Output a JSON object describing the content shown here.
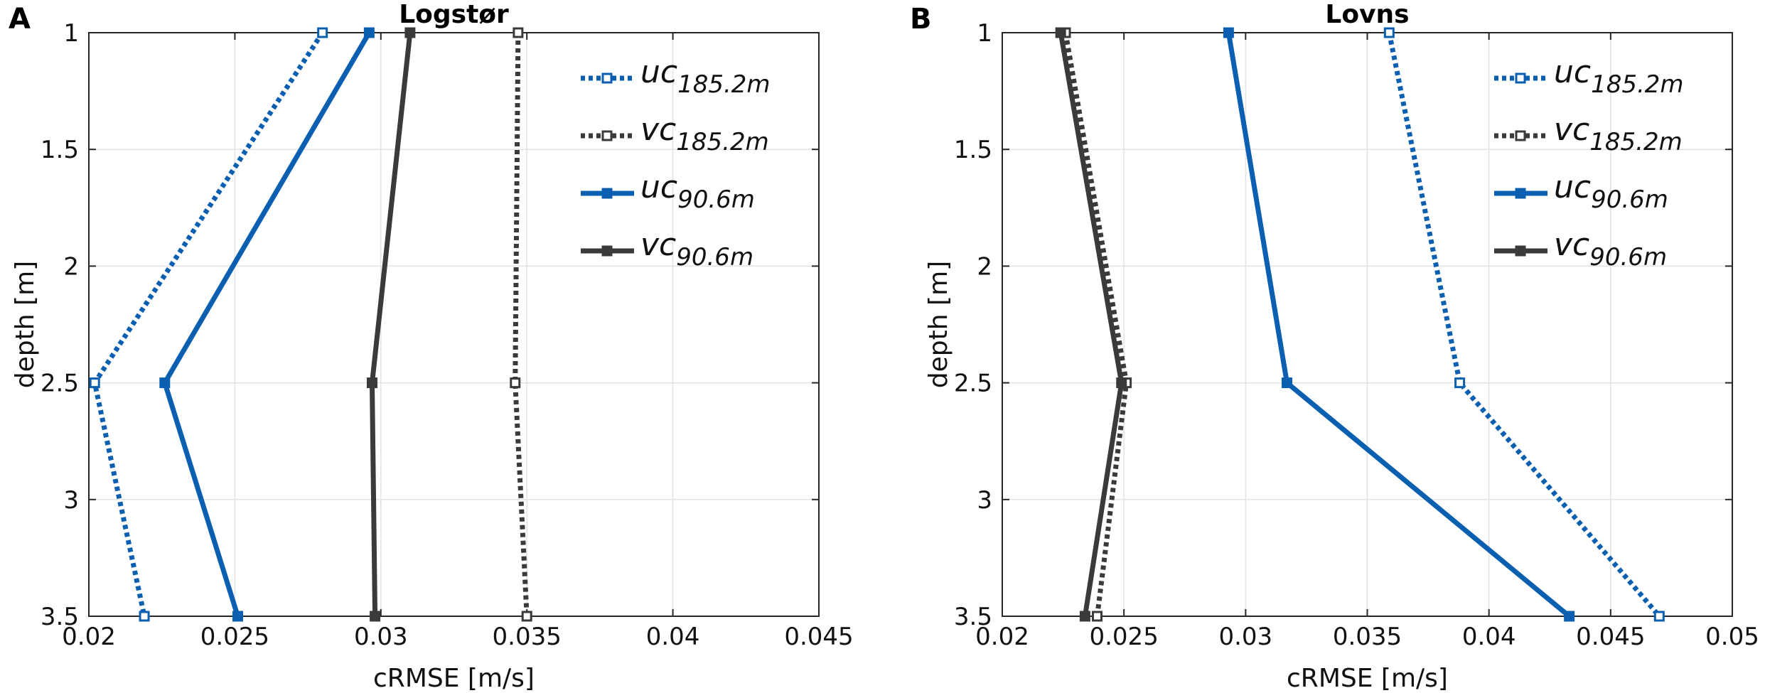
{
  "figure": {
    "colors": {
      "blue": "#0b5fb0",
      "dark": "#3a3a3a",
      "grid": "#e3e3e3",
      "axis": "#262626"
    }
  },
  "chart_data": [
    {
      "type": "line",
      "panel_label": "A",
      "title": "Logstør",
      "xlabel": "cRMSE [m/s]",
      "ylabel": "depth [m]",
      "xlim": [
        0.02,
        0.045
      ],
      "ylim": [
        1,
        3.5
      ],
      "y_reversed": true,
      "grid": true,
      "xticks": [
        0.02,
        0.025,
        0.03,
        0.035,
        0.04,
        0.045
      ],
      "xtick_labels": [
        "0.02",
        "0.025",
        "0.03",
        "0.035",
        "0.04",
        "0.045"
      ],
      "yticks": [
        1,
        1.5,
        2,
        2.5,
        3,
        3.5
      ],
      "ytick_labels": [
        "1",
        "1.5",
        "2",
        "2.5",
        "3",
        "3.5"
      ],
      "legend_position": "top-right",
      "depths": [
        1,
        2.5,
        3.5
      ],
      "series": [
        {
          "id": "uc185",
          "name": "uc",
          "subscript": "185.2m",
          "color": "blue",
          "style": "dotted",
          "marker": "open-square",
          "values": [
            0.028,
            0.0202,
            0.0219
          ]
        },
        {
          "id": "vc185",
          "name": "vc",
          "subscript": "185.2m",
          "color": "dark",
          "style": "dotted",
          "marker": "open-square",
          "values": [
            0.0347,
            0.0346,
            0.035
          ]
        },
        {
          "id": "uc906",
          "name": "uc",
          "subscript": "90.6m",
          "color": "blue",
          "style": "solid",
          "marker": "filled-square",
          "values": [
            0.0296,
            0.0226,
            0.0251
          ]
        },
        {
          "id": "vc906",
          "name": "vc",
          "subscript": "90.6m",
          "color": "dark",
          "style": "solid",
          "marker": "filled-square",
          "values": [
            0.031,
            0.0297,
            0.0298
          ]
        }
      ]
    },
    {
      "type": "line",
      "panel_label": "B",
      "title": "Lovns",
      "xlabel": "cRMSE [m/s]",
      "ylabel": "depth [m]",
      "xlim": [
        0.02,
        0.05
      ],
      "ylim": [
        1,
        3.5
      ],
      "y_reversed": true,
      "grid": true,
      "xticks": [
        0.02,
        0.025,
        0.03,
        0.035,
        0.04,
        0.045,
        0.05
      ],
      "xtick_labels": [
        "0.02",
        "0.025",
        "0.03",
        "0.035",
        "0.04",
        "0.045",
        "0.05"
      ],
      "yticks": [
        1,
        1.5,
        2,
        2.5,
        3,
        3.5
      ],
      "ytick_labels": [
        "1",
        "1.5",
        "2",
        "2.5",
        "3",
        "3.5"
      ],
      "legend_position": "top-right",
      "depths": [
        1,
        2.5,
        3.5
      ],
      "series": [
        {
          "id": "uc185",
          "name": "uc",
          "subscript": "185.2m",
          "color": "blue",
          "style": "dotted",
          "marker": "open-square",
          "values": [
            0.0359,
            0.0388,
            0.047
          ]
        },
        {
          "id": "vc185",
          "name": "vc",
          "subscript": "185.2m",
          "color": "dark",
          "style": "dotted",
          "marker": "open-square",
          "values": [
            0.0226,
            0.0251,
            0.0239
          ]
        },
        {
          "id": "uc906",
          "name": "uc",
          "subscript": "90.6m",
          "color": "blue",
          "style": "solid",
          "marker": "filled-square",
          "values": [
            0.0293,
            0.0317,
            0.0433
          ]
        },
        {
          "id": "vc906",
          "name": "vc",
          "subscript": "90.6m",
          "color": "dark",
          "style": "solid",
          "marker": "filled-square",
          "values": [
            0.0224,
            0.0249,
            0.0234
          ]
        }
      ]
    }
  ]
}
